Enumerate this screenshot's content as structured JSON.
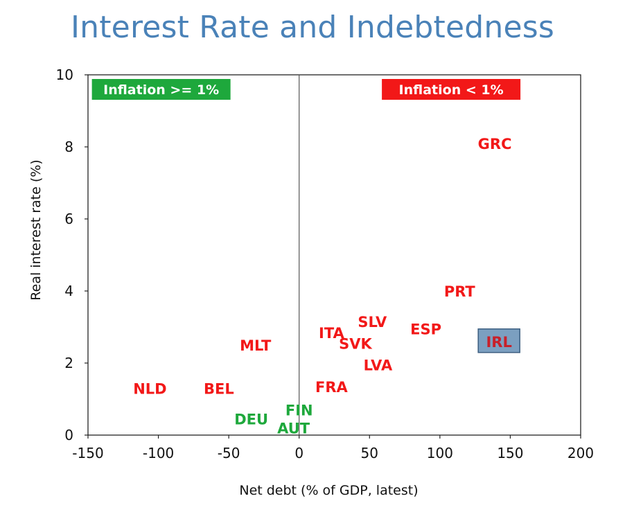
{
  "chart_data": {
    "type": "scatter",
    "title": "Interest Rate and Indebtedness",
    "xlabel": "Net debt (% of GDP, latest)",
    "ylabel": "Real interest rate (%)",
    "xlim": [
      -150,
      200
    ],
    "ylim": [
      0,
      10
    ],
    "xticks": [
      -150,
      -100,
      -50,
      0,
      50,
      100,
      150,
      200
    ],
    "yticks": [
      0,
      2,
      4,
      6,
      8,
      10
    ],
    "vline_x": 0,
    "legend": [
      {
        "label": "Inflation >= 1%",
        "color": "#1ea83c",
        "placement": "top-left"
      },
      {
        "label": "Inflation < 1%",
        "color": "#f21818",
        "placement": "top-right"
      }
    ],
    "series": [
      {
        "name": "Inflation < 1%",
        "color": "#f21818",
        "points": [
          {
            "label": "GRC",
            "x": 139,
            "y": 8.1
          },
          {
            "label": "PRT",
            "x": 114,
            "y": 4.0
          },
          {
            "label": "ESP",
            "x": 90,
            "y": 2.95
          },
          {
            "label": "IRL",
            "x": 142,
            "y": 2.6,
            "highlight": true
          },
          {
            "label": "SLV",
            "x": 52,
            "y": 3.15
          },
          {
            "label": "ITA",
            "x": 23,
            "y": 2.85
          },
          {
            "label": "SVK",
            "x": 40,
            "y": 2.55
          },
          {
            "label": "LVA",
            "x": 56,
            "y": 1.95
          },
          {
            "label": "FRA",
            "x": 23,
            "y": 1.35
          },
          {
            "label": "MLT",
            "x": -31,
            "y": 2.5
          },
          {
            "label": "NLD",
            "x": -106,
            "y": 1.3
          },
          {
            "label": "BEL",
            "x": -57,
            "y": 1.3
          }
        ]
      },
      {
        "name": "Inflation >= 1%",
        "color": "#1ea83c",
        "points": [
          {
            "label": "FIN",
            "x": 0,
            "y": 0.7
          },
          {
            "label": "DEU",
            "x": -34,
            "y": 0.45
          },
          {
            "label": "AUT",
            "x": -4,
            "y": 0.2
          }
        ]
      }
    ]
  }
}
